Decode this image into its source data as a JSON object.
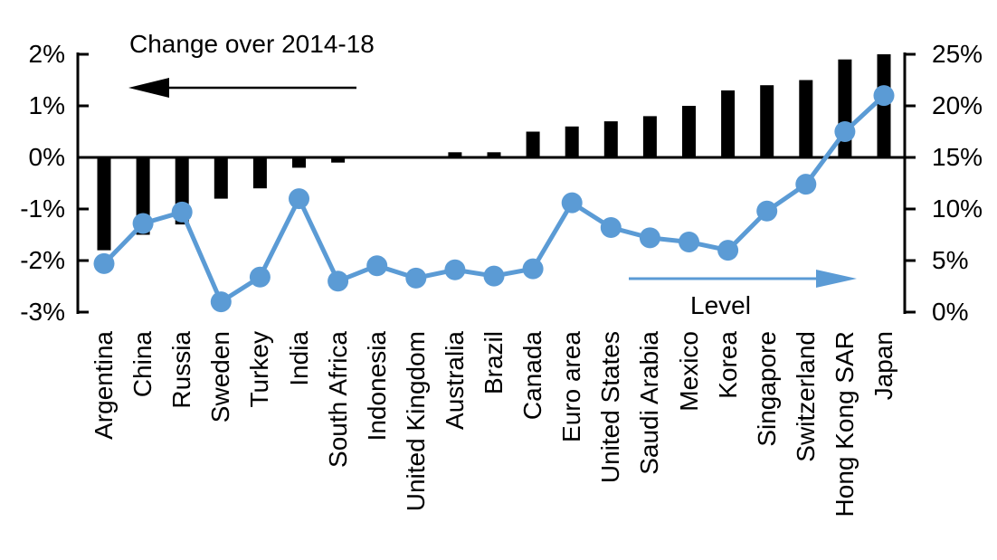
{
  "chart_data": {
    "type": "bar",
    "subtype": "combo-bar-line-dual-axis",
    "categories": [
      "Argentina",
      "China",
      "Russia",
      "Sweden",
      "Turkey",
      "India",
      "South Africa",
      "Indonesia",
      "United Kingdom",
      "Australia",
      "Brazil",
      "Canada",
      "Euro area",
      "United States",
      "Saudi Arabia",
      "Mexico",
      "Korea",
      "Singapore",
      "Switzerland",
      "Hong Kong SAR",
      "Japan"
    ],
    "series": [
      {
        "name": "Change over 2014-18",
        "type": "bar",
        "axis": "left",
        "color": "#000000",
        "values": [
          -1.8,
          -1.5,
          -1.3,
          -0.8,
          -0.6,
          -0.2,
          -0.1,
          0,
          0,
          0.1,
          0.1,
          0.5,
          0.6,
          0.7,
          0.8,
          1,
          1.3,
          1.4,
          1.5,
          1.9,
          2
        ]
      },
      {
        "name": "Level",
        "type": "line",
        "axis": "right",
        "color": "#5B9BD5",
        "values": [
          4.7,
          8.6,
          9.7,
          1,
          3.4,
          11,
          3,
          4.5,
          3.3,
          4.1,
          3.5,
          4.2,
          10.6,
          8.2,
          7.2,
          6.8,
          6,
          9.8,
          12.4,
          17.5,
          21
        ]
      }
    ],
    "left_axis": {
      "tick_labels": [
        "2%",
        "1%",
        "0%",
        "-1%",
        "-2%",
        "-3%"
      ],
      "min": -3,
      "max": 2,
      "unit": "%"
    },
    "right_axis": {
      "tick_labels": [
        "25%",
        "20%",
        "15%",
        "10%",
        "5%",
        "0%"
      ],
      "min": 0,
      "max": 25,
      "unit": "%"
    },
    "labels": {
      "change": "Change over 2014-18",
      "level": "Level"
    },
    "grid": false,
    "legend_position": "in-plot-annotations-with-arrows",
    "colors": {
      "bar": "#000000",
      "line": "#5B9BD5",
      "text": "#000000",
      "background": "#FFFFFF"
    }
  }
}
